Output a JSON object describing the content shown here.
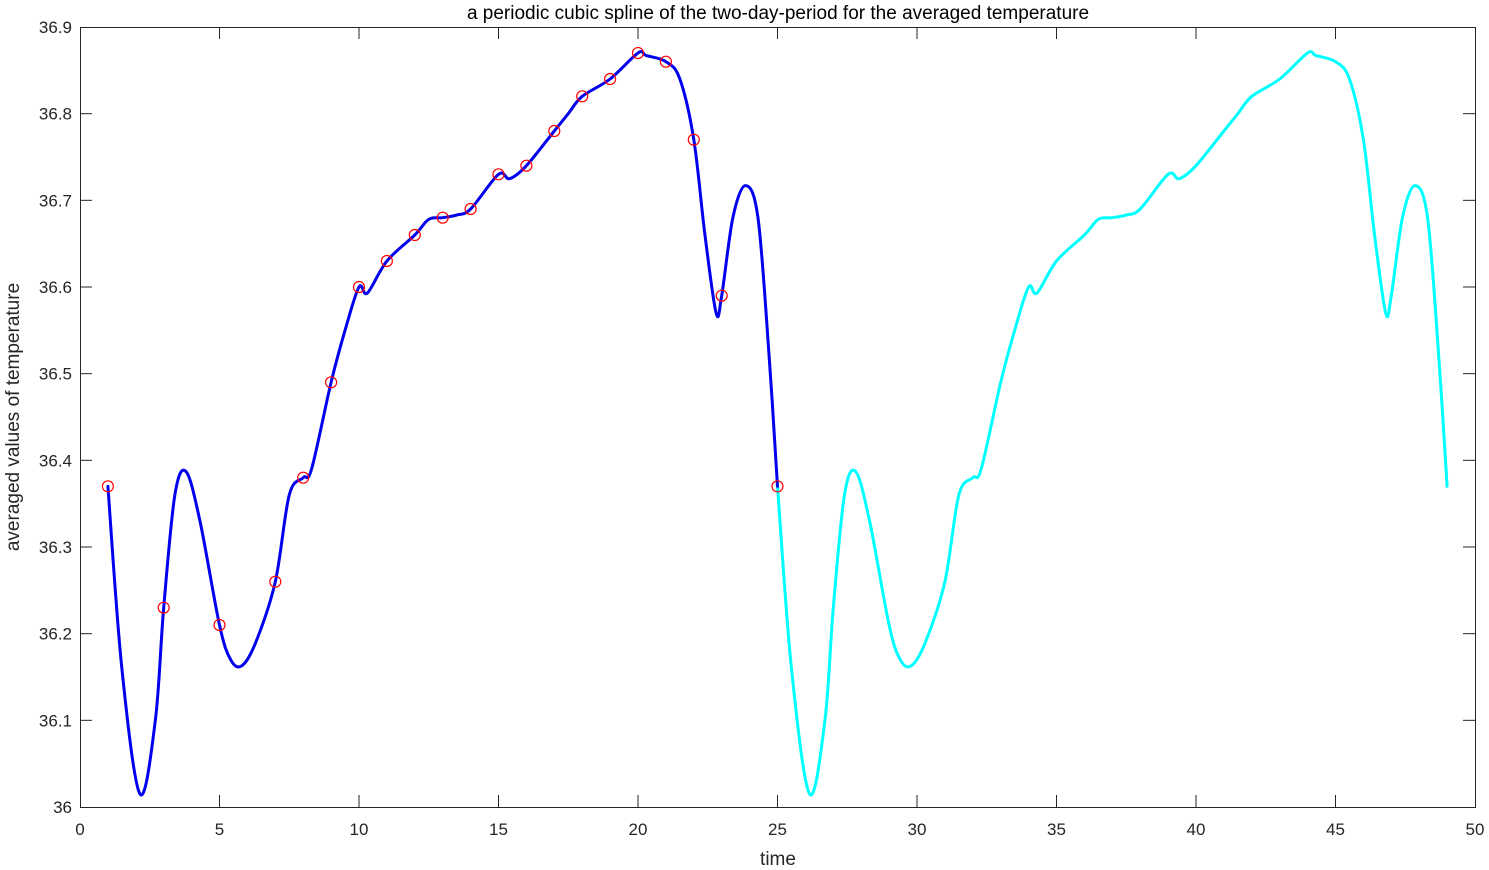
{
  "chart_data": {
    "type": "line",
    "title": "a periodic cubic spline of the two-day-period for the averaged temperature",
    "xlabel": "time",
    "ylabel": "averaged values of temperature",
    "xlim": [
      0,
      50
    ],
    "ylim": [
      36,
      36.9
    ],
    "xticks": [
      0,
      5,
      10,
      15,
      20,
      25,
      30,
      35,
      40,
      45,
      50
    ],
    "yticks": [
      36,
      36.1,
      36.2,
      36.3,
      36.4,
      36.5,
      36.6,
      36.7,
      36.8,
      36.9
    ],
    "xtick_labels": [
      "0",
      "5",
      "10",
      "15",
      "20",
      "25",
      "30",
      "35",
      "40",
      "45",
      "50"
    ],
    "ytick_labels": [
      "36",
      "36.1",
      "36.2",
      "36.3",
      "36.4",
      "36.5",
      "36.6",
      "36.7",
      "36.8",
      "36.9"
    ],
    "grid": false,
    "legend": "none",
    "series": [
      {
        "style": "markers",
        "marker": "circle",
        "color": "#ff0000",
        "x": [
          1,
          3,
          5,
          7,
          8,
          9,
          10,
          11,
          12,
          13,
          14,
          15,
          16,
          17,
          18,
          19,
          20,
          21,
          22,
          23,
          25
        ],
        "y": [
          36.37,
          36.23,
          36.21,
          36.26,
          36.38,
          36.49,
          36.6,
          36.63,
          36.66,
          36.68,
          36.69,
          36.73,
          36.74,
          36.78,
          36.82,
          36.84,
          36.87,
          36.86,
          36.77,
          36.59,
          36.37
        ]
      },
      {
        "style": "line",
        "color": "#0000ee",
        "x": [
          1,
          1.5,
          2.15,
          2.7,
          3,
          3.4,
          3.8,
          4.3,
          5,
          5.4,
          5.8,
          6.3,
          7,
          7.5,
          8,
          8.3,
          9,
          9.5,
          10,
          10.3,
          11,
          12,
          12.5,
          13,
          13.5,
          14,
          15,
          15.4,
          16,
          17,
          17.5,
          18,
          19,
          20,
          20.3,
          21,
          21.5,
          22,
          22.4,
          22.8,
          23,
          23.4,
          23.85,
          24.3,
          24.7,
          25
        ],
        "y": [
          36.37,
          36.16,
          36.015,
          36.1,
          36.23,
          36.36,
          36.387,
          36.33,
          36.21,
          36.17,
          36.163,
          36.19,
          36.26,
          36.36,
          36.38,
          36.39,
          36.49,
          36.55,
          36.6,
          36.593,
          36.63,
          36.66,
          36.678,
          36.68,
          36.683,
          36.69,
          36.73,
          36.725,
          36.74,
          36.78,
          36.8,
          36.82,
          36.84,
          36.87,
          36.867,
          36.86,
          36.84,
          36.77,
          36.66,
          36.57,
          36.59,
          36.68,
          36.717,
          36.68,
          36.52,
          36.37
        ]
      },
      {
        "style": "line",
        "color": "#00ffff",
        "x": [
          25,
          25.5,
          26.15,
          26.7,
          27,
          27.4,
          27.8,
          28.3,
          29,
          29.4,
          29.8,
          30.3,
          31,
          31.5,
          32,
          32.3,
          33,
          33.5,
          34,
          34.3,
          35,
          36,
          36.5,
          37,
          37.5,
          38,
          39,
          39.4,
          40,
          41,
          41.5,
          42,
          43,
          44,
          44.3,
          45,
          45.5,
          46,
          46.4,
          46.8,
          47,
          47.4,
          47.85,
          48.3,
          48.7,
          49
        ],
        "y": [
          36.37,
          36.16,
          36.015,
          36.1,
          36.23,
          36.36,
          36.387,
          36.33,
          36.21,
          36.17,
          36.163,
          36.19,
          36.26,
          36.36,
          36.38,
          36.39,
          36.49,
          36.55,
          36.6,
          36.593,
          36.63,
          36.66,
          36.678,
          36.68,
          36.683,
          36.69,
          36.73,
          36.725,
          36.74,
          36.78,
          36.8,
          36.82,
          36.84,
          36.87,
          36.867,
          36.86,
          36.84,
          36.77,
          36.66,
          36.57,
          36.59,
          36.68,
          36.717,
          36.68,
          36.52,
          36.37
        ]
      }
    ]
  }
}
